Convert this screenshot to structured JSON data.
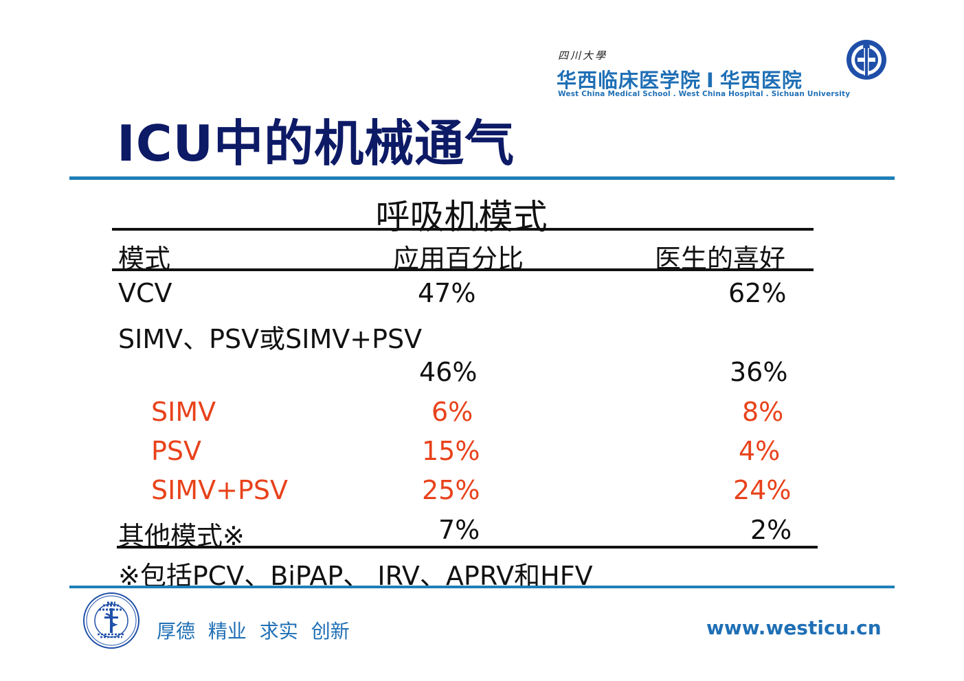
{
  "header": {
    "university_small": "四川大學",
    "school_name_cn_1": "华西临床医学院",
    "school_name_separator": "I",
    "school_name_cn_2": "华西医院",
    "school_name_en": "West China Medical School . West China Hospital . Sichuan University"
  },
  "title": "ICU中的机械通气",
  "table": {
    "subtitle": "呼吸机模式",
    "columns": [
      "模式",
      "应用百分比",
      "医生的喜好"
    ],
    "rows": [
      {
        "mode": "VCV",
        "usage": "47%",
        "preference": "62%",
        "highlight": false
      },
      {
        "mode": "SIMV、PSV或SIMV+PSV",
        "usage": "",
        "preference": "",
        "highlight": false
      },
      {
        "mode": "",
        "usage": "46%",
        "preference": "36%",
        "highlight": false
      },
      {
        "mode": "SIMV",
        "usage": "6%",
        "preference": "8%",
        "highlight": true
      },
      {
        "mode": "PSV",
        "usage": "15%",
        "preference": "4%",
        "highlight": true
      },
      {
        "mode": "SIMV+PSV",
        "usage": "25%",
        "preference": "24%",
        "highlight": true
      },
      {
        "mode": "其他模式※",
        "usage": "7%",
        "preference": "2%",
        "highlight": false
      }
    ],
    "footnote": "※包括PCV、BiPAP、 IRV、APRV和HFV"
  },
  "footer": {
    "motto": "厚德 精业 求实 创新",
    "url": "www.westicu.cn"
  },
  "colors": {
    "title": "#0d1a66",
    "brand_blue": "#1f6fb5",
    "rule_blue": "#1f7fb8",
    "highlight_red": "#e8421b"
  },
  "icons": {
    "top_logo": "west-china-hospital-logo",
    "bottom_logo": "west-china-medical-school-seal"
  }
}
